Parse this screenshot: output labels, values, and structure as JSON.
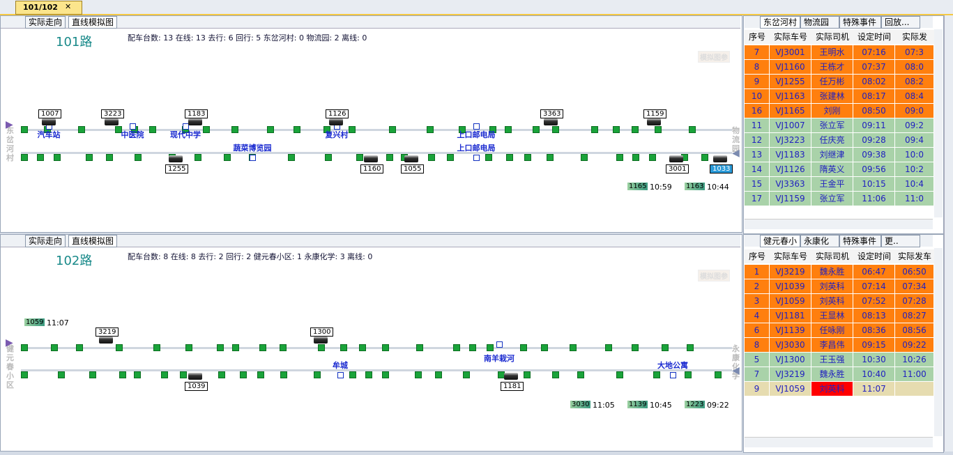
{
  "top_tab": "101/102",
  "panels": [
    {
      "tabs": [
        "实际走向",
        "直线模拟图"
      ],
      "route": "101路",
      "stats": "配车台数: 13 在线: 13 去行: 6 回行: 5 东岔河村: 0 物流园: 2 离线: 0",
      "button": "模拟图参",
      "left_terminal": "东岔河村",
      "right_terminal": "物流园",
      "upper_stations": [
        "汽车站",
        "中医院",
        "现代中学",
        "复兴村",
        "上口邮电局"
      ],
      "lower_stations": [
        "蔬菜博览园",
        "上口邮电局"
      ],
      "upper_buses": [
        "1007",
        "3223",
        "1183",
        "1126",
        "3363",
        "1159"
      ],
      "lower_buses": [
        "1255",
        "1160",
        "1055",
        "3001",
        "1033"
      ],
      "waiting": [
        {
          "bus": "1165",
          "time": "10:59"
        },
        {
          "bus": "1163",
          "time": "10:44"
        }
      ],
      "table": {
        "tabs": [
          "东岔河村",
          "物流园",
          "特殊事件",
          "回放..."
        ],
        "headers": [
          "序号",
          "实际车号",
          "实际司机",
          "设定时间",
          "实际发"
        ],
        "rows": [
          [
            "7",
            "VJ3001",
            "王明水",
            "07:16",
            "07:3"
          ],
          [
            "8",
            "VJ1160",
            "王栋才",
            "07:37",
            "08:0"
          ],
          [
            "9",
            "VJ1255",
            "任万彬",
            "08:02",
            "08:2"
          ],
          [
            "10",
            "VJ1163",
            "张建林",
            "08:17",
            "08:4"
          ],
          [
            "16",
            "VJ1165",
            "刘刚",
            "08:50",
            "09:0"
          ],
          [
            "11",
            "VJ1007",
            "张立军",
            "09:11",
            "09:2"
          ],
          [
            "12",
            "VJ3223",
            "任庆亮",
            "09:28",
            "09:4"
          ],
          [
            "13",
            "VJ1183",
            "刘继津",
            "09:38",
            "10:0"
          ],
          [
            "14",
            "VJ1126",
            "隋英义",
            "09:56",
            "10:2"
          ],
          [
            "15",
            "VJ3363",
            "王金平",
            "10:15",
            "10:4"
          ],
          [
            "17",
            "VJ1159",
            "张立军",
            "11:06",
            "11:0"
          ]
        ]
      }
    },
    {
      "tabs": [
        "实际走向",
        "直线模拟图"
      ],
      "route": "102路",
      "stats": "配车台数: 8 在线: 8 去行: 2 回行: 2 健元春小区: 1 永康化学: 3 离线: 0",
      "button": "模拟图参",
      "left_terminal": "健元春小区",
      "right_terminal": "永康化学",
      "upper_stations": [
        "南羊栽河"
      ],
      "lower_stations": [
        "牟城",
        "大地公寓"
      ],
      "upper_buses": [
        "3219",
        "1300"
      ],
      "lower_buses": [
        "1039",
        "1181"
      ],
      "waiting": [
        {
          "bus": "1059",
          "time": "11:07"
        },
        {
          "bus": "3030",
          "time": "11:05"
        },
        {
          "bus": "1139",
          "time": "10:45"
        },
        {
          "bus": "1223",
          "time": "09:22"
        }
      ],
      "table": {
        "tabs": [
          "健元春小区",
          "永康化学",
          "特殊事件",
          "更.."
        ],
        "headers": [
          "序号",
          "实际车号",
          "实际司机",
          "设定时间",
          "实际发车"
        ],
        "rows": [
          [
            "1",
            "VJ3219",
            "魏永胜",
            "06:47",
            "06:50"
          ],
          [
            "2",
            "VJ1039",
            "刘英科",
            "07:14",
            "07:34"
          ],
          [
            "3",
            "VJ1059",
            "刘英科",
            "07:52",
            "07:28"
          ],
          [
            "4",
            "VJ1181",
            "王显林",
            "08:13",
            "08:27"
          ],
          [
            "6",
            "VJ1139",
            "任咏刚",
            "08:36",
            "08:56"
          ],
          [
            "8",
            "VJ3030",
            "李昌伟",
            "09:15",
            "09:22"
          ],
          [
            "5",
            "VJ1300",
            "王玉强",
            "10:30",
            "10:26"
          ],
          [
            "7",
            "VJ3219",
            "魏永胜",
            "10:40",
            "11:00"
          ],
          [
            "9",
            "VJ1059",
            "刘英科",
            "11:07"
          ]
        ]
      }
    }
  ]
}
